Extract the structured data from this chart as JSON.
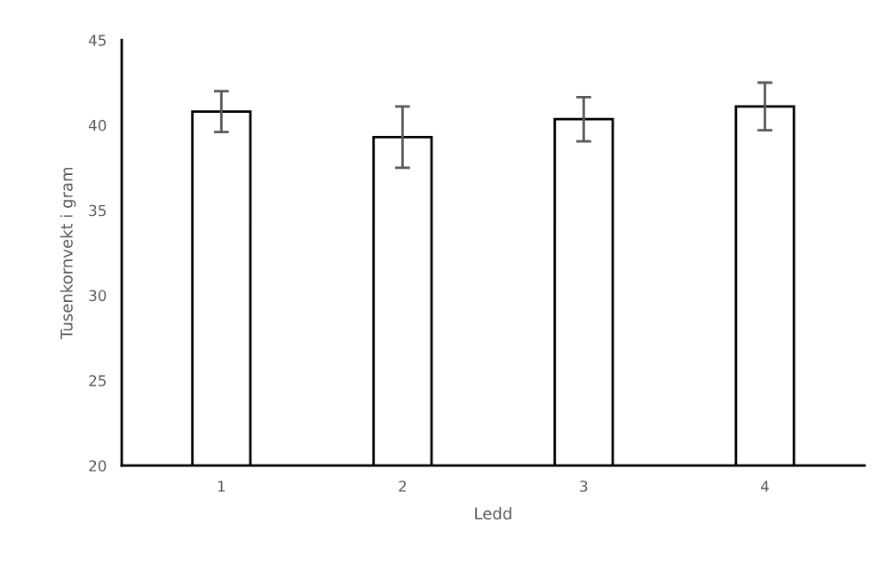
{
  "chart_data": {
    "type": "bar",
    "xlabel": "Ledd",
    "ylabel": "Tusenkornvekt i gram",
    "categories": [
      "1",
      "2",
      "3",
      "4"
    ],
    "series": [
      {
        "color": "#ffffff",
        "values": [
          40.8,
          39.3,
          40.35,
          41.1
        ],
        "errors": [
          1.2,
          1.8,
          1.3,
          1.4
        ]
      }
    ],
    "ylim": [
      20,
      45
    ],
    "yticks": [
      20,
      25,
      30,
      35,
      40,
      45
    ],
    "grid": false,
    "legend": false
  }
}
